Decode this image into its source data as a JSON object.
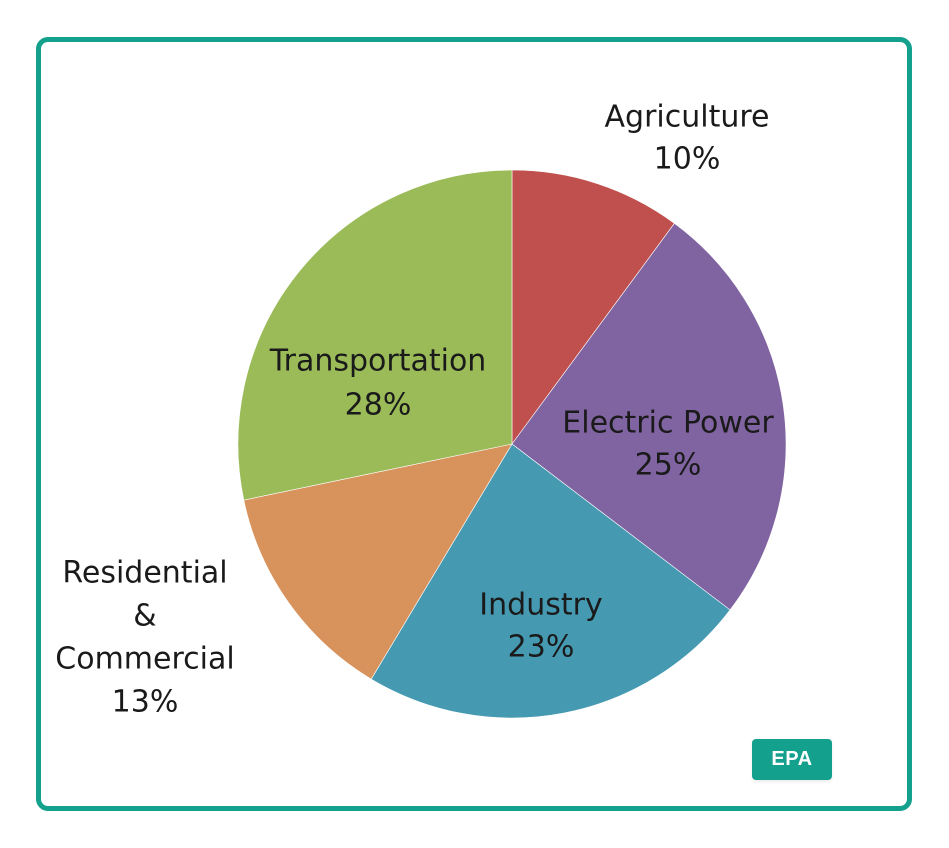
{
  "chart_data": {
    "type": "pie",
    "title": "",
    "slices": [
      {
        "name": "Agriculture",
        "value": 10,
        "label": "10%",
        "color": "#c0504d"
      },
      {
        "name": "Electric Power",
        "value": 25,
        "label": "25%",
        "color": "#8064a2"
      },
      {
        "name": "Industry",
        "value": 23,
        "label": "23%",
        "color": "#4599b1"
      },
      {
        "name": "Residential & Commercial",
        "value": 13,
        "label": "13%",
        "color": "#d8925c"
      },
      {
        "name": "Transportation",
        "value": 28,
        "label": "28%",
        "color": "#9bbb59"
      }
    ],
    "start": "12 o'clock",
    "direction": "clockwise"
  },
  "badge": {
    "label": "EPA"
  },
  "colors": {
    "frame": "#13a08c",
    "badge": "#13a08c"
  }
}
